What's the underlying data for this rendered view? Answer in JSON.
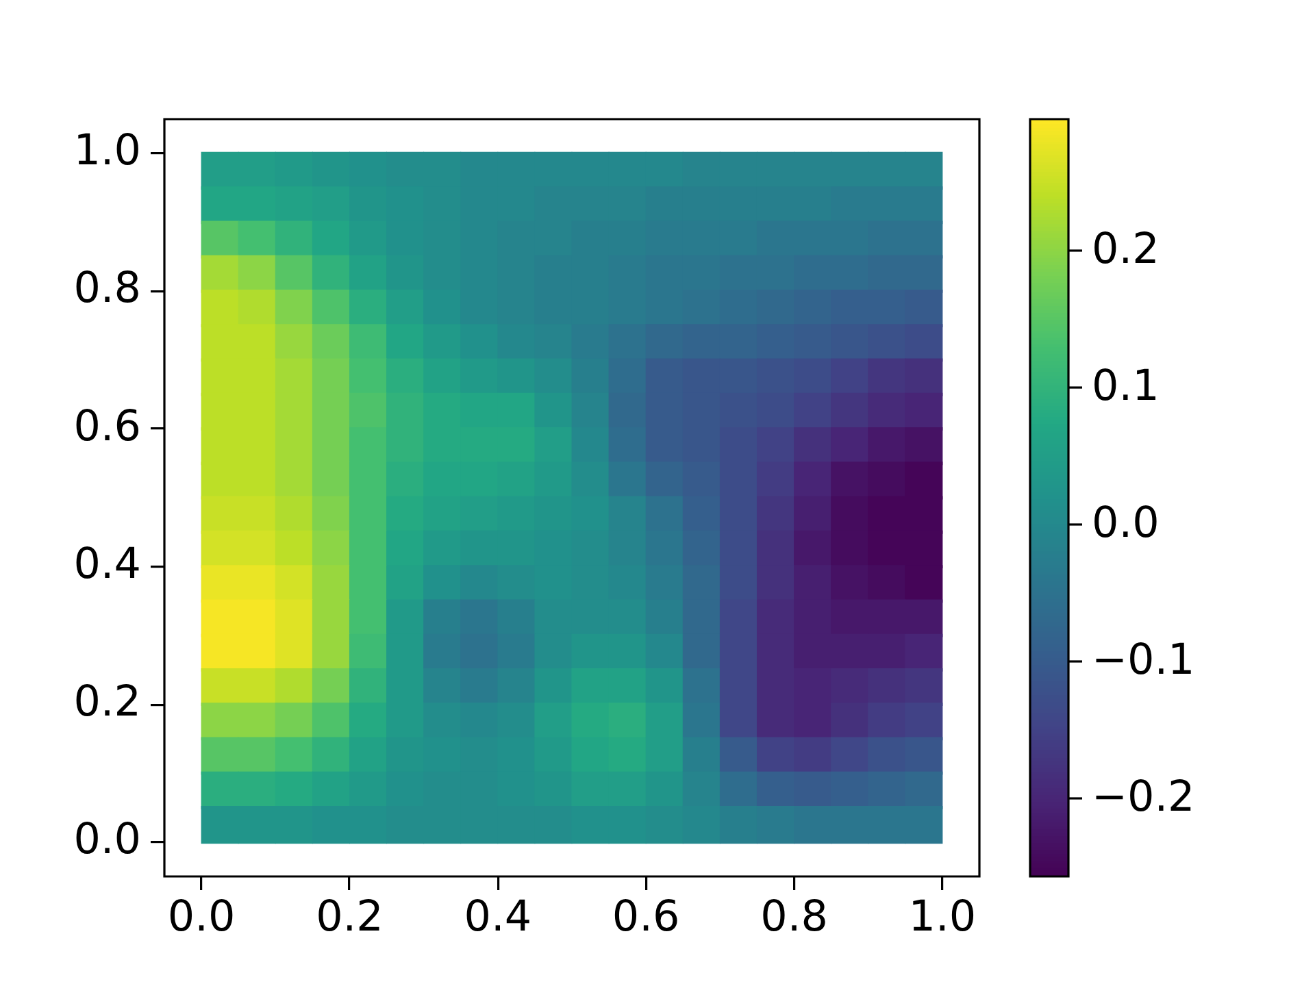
{
  "chart_data": {
    "type": "scatter",
    "marker": "square",
    "xlim": [
      -0.05,
      1.05
    ],
    "ylim": [
      -0.05,
      1.05
    ],
    "xticks": [
      {
        "value": 0,
        "label": "0.0"
      },
      0.2,
      0.4,
      0.6,
      0.8,
      {
        "value": 1,
        "label": "1.0"
      }
    ],
    "yticks": [
      {
        "value": 0,
        "label": "0.0"
      },
      0.2,
      0.4,
      0.6,
      0.8,
      {
        "value": 1,
        "label": "1.0"
      }
    ],
    "clim": [
      -0.257,
      0.296
    ],
    "cticks": [
      {
        "value": -0.2,
        "label": "−0.2"
      },
      {
        "value": -0.1,
        "label": "−0.1"
      },
      {
        "value": 0,
        "label": "0.0"
      },
      0.1,
      0.2
    ],
    "x": [
      0.025,
      0.075,
      0.125,
      0.175,
      0.225,
      0.275,
      0.325,
      0.375,
      0.425,
      0.475,
      0.525,
      0.575,
      0.625,
      0.675,
      0.725,
      0.775,
      0.825,
      0.875,
      0.925,
      0.975,
      0.025,
      0.075,
      0.125,
      0.175,
      0.225,
      0.275,
      0.325,
      0.375,
      0.425,
      0.475,
      0.525,
      0.575,
      0.625,
      0.675,
      0.725,
      0.775,
      0.825,
      0.875,
      0.925,
      0.975,
      0.025,
      0.075,
      0.125,
      0.175,
      0.225,
      0.275,
      0.325,
      0.375,
      0.425,
      0.475,
      0.525,
      0.575,
      0.625,
      0.675,
      0.725,
      0.775,
      0.825,
      0.875,
      0.925,
      0.975,
      0.025,
      0.075,
      0.125,
      0.175,
      0.225,
      0.275,
      0.325,
      0.375,
      0.425,
      0.475,
      0.525,
      0.575,
      0.625,
      0.675,
      0.725,
      0.775,
      0.825,
      0.875,
      0.925,
      0.975,
      0.025,
      0.075,
      0.125,
      0.175,
      0.225,
      0.275,
      0.325,
      0.375,
      0.425,
      0.475,
      0.525,
      0.575,
      0.625,
      0.675,
      0.725,
      0.775,
      0.825,
      0.875,
      0.925,
      0.975,
      0.025,
      0.075,
      0.125,
      0.175,
      0.225,
      0.275,
      0.325,
      0.375,
      0.425,
      0.475,
      0.525,
      0.575,
      0.625,
      0.675,
      0.725,
      0.775,
      0.825,
      0.875,
      0.925,
      0.975,
      0.025,
      0.075,
      0.125,
      0.175,
      0.225,
      0.275,
      0.325,
      0.375,
      0.425,
      0.475,
      0.525,
      0.575,
      0.625,
      0.675,
      0.725,
      0.775,
      0.825,
      0.875,
      0.925,
      0.975,
      0.025,
      0.075,
      0.125,
      0.175,
      0.225,
      0.275,
      0.325,
      0.375,
      0.425,
      0.475,
      0.525,
      0.575,
      0.625,
      0.675,
      0.725,
      0.775,
      0.825,
      0.875,
      0.925,
      0.975,
      0.025,
      0.075,
      0.125,
      0.175,
      0.225,
      0.275,
      0.325,
      0.375,
      0.425,
      0.475,
      0.525,
      0.575,
      0.625,
      0.675,
      0.725,
      0.775,
      0.825,
      0.875,
      0.925,
      0.975,
      0.025,
      0.075,
      0.125,
      0.175,
      0.225,
      0.275,
      0.325,
      0.375,
      0.425,
      0.475,
      0.525,
      0.575,
      0.625,
      0.675,
      0.725,
      0.775,
      0.825,
      0.875,
      0.925,
      0.975,
      0.025,
      0.075,
      0.125,
      0.175,
      0.225,
      0.275,
      0.325,
      0.375,
      0.425,
      0.475,
      0.525,
      0.575,
      0.625,
      0.675,
      0.725,
      0.775,
      0.825,
      0.875,
      0.925,
      0.975,
      0.025,
      0.075,
      0.125,
      0.175,
      0.225,
      0.275,
      0.325,
      0.375,
      0.425,
      0.475,
      0.525,
      0.575,
      0.625,
      0.675,
      0.725,
      0.775,
      0.825,
      0.875,
      0.925,
      0.975,
      0.025,
      0.075,
      0.125,
      0.175,
      0.225,
      0.275,
      0.325,
      0.375,
      0.425,
      0.475,
      0.525,
      0.575,
      0.625,
      0.675,
      0.725,
      0.775,
      0.825,
      0.875,
      0.925,
      0.975,
      0.025,
      0.075,
      0.125,
      0.175,
      0.225,
      0.275,
      0.325,
      0.375,
      0.425,
      0.475,
      0.525,
      0.575,
      0.625,
      0.675,
      0.725,
      0.775,
      0.825,
      0.875,
      0.925,
      0.975,
      0.025,
      0.075,
      0.125,
      0.175,
      0.225,
      0.275,
      0.325,
      0.375,
      0.425,
      0.475,
      0.525,
      0.575,
      0.625,
      0.675,
      0.725,
      0.775,
      0.825,
      0.875,
      0.925,
      0.975,
      0.025,
      0.075,
      0.125,
      0.175,
      0.225,
      0.275,
      0.325,
      0.375,
      0.425,
      0.475,
      0.525,
      0.575,
      0.625,
      0.675,
      0.725,
      0.775,
      0.825,
      0.875,
      0.925,
      0.975,
      0.025,
      0.075,
      0.125,
      0.175,
      0.225,
      0.275,
      0.325,
      0.375,
      0.425,
      0.475,
      0.525,
      0.575,
      0.625,
      0.675,
      0.725,
      0.775,
      0.825,
      0.875,
      0.925,
      0.975,
      0.025,
      0.075,
      0.125,
      0.175,
      0.225,
      0.275,
      0.325,
      0.375,
      0.425,
      0.475,
      0.525,
      0.575,
      0.625,
      0.675,
      0.725,
      0.775,
      0.825,
      0.875,
      0.925,
      0.975,
      0.025,
      0.075,
      0.125,
      0.175,
      0.225,
      0.275,
      0.325,
      0.375,
      0.425,
      0.475,
      0.525,
      0.575,
      0.625,
      0.675,
      0.725,
      0.775,
      0.825,
      0.875,
      0.925,
      0.975,
      0.025,
      0.075,
      0.125,
      0.175,
      0.225,
      0.275,
      0.325,
      0.375,
      0.425,
      0.475,
      0.525,
      0.575,
      0.625,
      0.675,
      0.725,
      0.775,
      0.825,
      0.875,
      0.925,
      0.975
    ],
    "values": [
      0.975,
      0.975,
      0.975,
      0.975,
      0.975,
      0.975,
      0.975,
      0.975,
      0.975,
      0.975,
      0.975,
      0.975,
      0.975,
      0.975,
      0.975,
      0.975,
      0.975,
      0.975,
      0.975,
      0.975,
      0.925,
      0.925,
      0.925,
      0.925,
      0.925,
      0.925,
      0.925,
      0.925,
      0.925,
      0.925,
      0.925,
      0.925,
      0.925,
      0.925,
      0.925,
      0.925,
      0.925,
      0.925,
      0.925,
      0.925,
      0.875,
      0.875,
      0.875,
      0.875,
      0.875,
      0.875,
      0.875,
      0.875,
      0.875,
      0.875,
      0.875,
      0.875,
      0.875,
      0.875,
      0.875,
      0.875,
      0.875,
      0.875,
      0.875,
      0.875,
      0.825,
      0.825,
      0.825,
      0.825,
      0.825,
      0.825,
      0.825,
      0.825,
      0.825,
      0.825,
      0.825,
      0.825,
      0.825,
      0.825,
      0.825,
      0.825,
      0.825,
      0.825,
      0.825,
      0.825,
      0.775,
      0.775,
      0.775,
      0.775,
      0.775,
      0.775,
      0.775,
      0.775,
      0.775,
      0.775,
      0.775,
      0.775,
      0.775,
      0.775,
      0.775,
      0.775,
      0.775,
      0.775,
      0.775,
      0.775,
      0.725,
      0.725,
      0.725,
      0.725,
      0.725,
      0.725,
      0.725,
      0.725,
      0.725,
      0.725,
      0.725,
      0.725,
      0.725,
      0.725,
      0.725,
      0.725,
      0.725,
      0.725,
      0.725,
      0.725,
      0.675,
      0.675,
      0.675,
      0.675,
      0.675,
      0.675,
      0.675,
      0.675,
      0.675,
      0.675,
      0.675,
      0.675,
      0.675,
      0.675,
      0.675,
      0.675,
      0.675,
      0.675,
      0.675,
      0.675,
      0.625,
      0.625,
      0.625,
      0.625,
      0.625,
      0.625,
      0.625,
      0.625,
      0.625,
      0.625,
      0.625,
      0.625,
      0.625,
      0.625,
      0.625,
      0.625,
      0.625,
      0.625,
      0.625,
      0.625,
      0.575,
      0.575,
      0.575,
      0.575,
      0.575,
      0.575,
      0.575,
      0.575,
      0.575,
      0.575,
      0.575,
      0.575,
      0.575,
      0.575,
      0.575,
      0.575,
      0.575,
      0.575,
      0.575,
      0.575,
      0.525,
      0.525,
      0.525,
      0.525,
      0.525,
      0.525,
      0.525,
      0.525,
      0.525,
      0.525,
      0.525,
      0.525,
      0.525,
      0.525,
      0.525,
      0.525,
      0.525,
      0.525,
      0.525,
      0.525,
      0.475,
      0.475,
      0.475,
      0.475,
      0.475,
      0.475,
      0.475,
      0.475,
      0.475,
      0.475,
      0.475,
      0.475,
      0.475,
      0.475,
      0.475,
      0.475,
      0.475,
      0.475,
      0.475,
      0.475,
      0.425,
      0.425,
      0.425,
      0.425,
      0.425,
      0.425,
      0.425,
      0.425,
      0.425,
      0.425,
      0.425,
      0.425,
      0.425,
      0.425,
      0.425,
      0.425,
      0.425,
      0.425,
      0.425,
      0.425,
      0.375,
      0.375,
      0.375,
      0.375,
      0.375,
      0.375,
      0.375,
      0.375,
      0.375,
      0.375,
      0.375,
      0.375,
      0.375,
      0.375,
      0.375,
      0.375,
      0.375,
      0.375,
      0.375,
      0.375,
      0.325,
      0.325,
      0.325,
      0.325,
      0.325,
      0.325,
      0.325,
      0.325,
      0.325,
      0.325,
      0.325,
      0.325,
      0.325,
      0.325,
      0.325,
      0.325,
      0.325,
      0.325,
      0.325,
      0.325,
      0.275,
      0.275,
      0.275,
      0.275,
      0.275,
      0.275,
      0.275,
      0.275,
      0.275,
      0.275,
      0.275,
      0.275,
      0.275,
      0.275,
      0.275,
      0.275,
      0.275,
      0.275,
      0.275,
      0.275,
      0.225,
      0.225,
      0.225,
      0.225,
      0.225,
      0.225,
      0.225,
      0.225,
      0.225,
      0.225,
      0.225,
      0.225,
      0.225,
      0.225,
      0.225,
      0.225,
      0.225,
      0.225,
      0.225,
      0.225,
      0.175,
      0.175,
      0.175,
      0.175,
      0.175,
      0.175,
      0.175,
      0.175,
      0.175,
      0.175,
      0.175,
      0.175,
      0.175,
      0.175,
      0.175,
      0.175,
      0.175,
      0.175,
      0.175,
      0.175,
      0.125,
      0.125,
      0.125,
      0.125,
      0.125,
      0.125,
      0.125,
      0.125,
      0.125,
      0.125,
      0.125,
      0.125,
      0.125,
      0.125,
      0.125,
      0.125,
      0.125,
      0.125,
      0.125,
      0.125,
      0.075,
      0.075,
      0.075,
      0.075,
      0.075,
      0.075,
      0.075,
      0.075,
      0.075,
      0.075,
      0.075,
      0.075,
      0.075,
      0.075,
      0.075,
      0.075,
      0.075,
      0.075,
      0.075,
      0.075,
      0.025,
      0.025,
      0.025,
      0.025,
      0.025,
      0.025,
      0.025,
      0.025,
      0.025,
      0.025,
      0.025,
      0.025,
      0.025,
      0.025,
      0.025,
      0.025,
      0.025,
      0.025,
      0.025,
      0.025
    ],
    "cvalues": [
      0.05,
      0.05,
      0.04,
      0.03,
      0.02,
      0.01,
      0.01,
      0.0,
      0.0,
      0.0,
      0.0,
      0.0,
      0.0,
      -0.01,
      -0.01,
      -0.01,
      -0.01,
      -0.01,
      -0.01,
      -0.01,
      0.07,
      0.07,
      0.06,
      0.05,
      0.03,
      0.02,
      0.01,
      0.0,
      0.0,
      -0.01,
      -0.01,
      -0.01,
      -0.02,
      -0.02,
      -0.02,
      -0.02,
      -0.02,
      -0.03,
      -0.03,
      -0.03,
      0.15,
      0.13,
      0.1,
      0.07,
      0.04,
      0.02,
      0.01,
      0.0,
      -0.01,
      -0.01,
      -0.02,
      -0.02,
      -0.03,
      -0.03,
      -0.03,
      -0.04,
      -0.04,
      -0.04,
      -0.05,
      -0.05,
      0.22,
      0.2,
      0.15,
      0.1,
      0.06,
      0.03,
      0.01,
      0.0,
      -0.01,
      -0.02,
      -0.02,
      -0.03,
      -0.04,
      -0.04,
      -0.05,
      -0.05,
      -0.06,
      -0.06,
      -0.07,
      -0.07,
      0.24,
      0.23,
      0.19,
      0.14,
      0.09,
      0.05,
      0.02,
      0.0,
      -0.01,
      -0.02,
      -0.02,
      -0.03,
      -0.04,
      -0.05,
      -0.06,
      -0.07,
      -0.08,
      -0.09,
      -0.09,
      -0.1,
      0.24,
      0.24,
      0.21,
      0.17,
      0.12,
      0.07,
      0.04,
      0.02,
      0.0,
      -0.01,
      -0.03,
      -0.05,
      -0.07,
      -0.08,
      -0.08,
      -0.09,
      -0.1,
      -0.11,
      -0.12,
      -0.13,
      0.24,
      0.24,
      0.22,
      0.18,
      0.13,
      0.09,
      0.06,
      0.04,
      0.03,
      0.01,
      -0.02,
      -0.06,
      -0.1,
      -0.11,
      -0.11,
      -0.12,
      -0.13,
      -0.15,
      -0.17,
      -0.18,
      0.24,
      0.24,
      0.22,
      0.18,
      0.14,
      0.1,
      0.08,
      0.07,
      0.07,
      0.03,
      -0.01,
      -0.07,
      -0.1,
      -0.11,
      -0.12,
      -0.13,
      -0.15,
      -0.17,
      -0.19,
      -0.2,
      0.24,
      0.24,
      0.22,
      0.18,
      0.13,
      0.1,
      0.08,
      0.08,
      0.08,
      0.05,
      0.0,
      -0.06,
      -0.1,
      -0.11,
      -0.13,
      -0.15,
      -0.18,
      -0.2,
      -0.22,
      -0.23,
      0.24,
      0.24,
      0.22,
      0.18,
      0.13,
      0.09,
      0.07,
      0.07,
      0.06,
      0.04,
      0.01,
      -0.04,
      -0.08,
      -0.1,
      -0.13,
      -0.16,
      -0.2,
      -0.23,
      -0.24,
      -0.25,
      0.25,
      0.25,
      0.23,
      0.19,
      0.13,
      0.08,
      0.06,
      0.05,
      0.04,
      0.03,
      0.02,
      -0.01,
      -0.05,
      -0.09,
      -0.13,
      -0.17,
      -0.21,
      -0.24,
      -0.25,
      -0.25,
      0.26,
      0.26,
      0.24,
      0.2,
      0.13,
      0.07,
      0.04,
      0.03,
      0.03,
      0.02,
      0.01,
      -0.01,
      -0.04,
      -0.08,
      -0.13,
      -0.18,
      -0.22,
      -0.24,
      -0.25,
      -0.25,
      0.28,
      0.28,
      0.26,
      0.21,
      0.13,
      0.06,
      0.02,
      0.0,
      0.01,
      0.02,
      0.01,
      0.0,
      -0.03,
      -0.07,
      -0.13,
      -0.18,
      -0.21,
      -0.23,
      -0.24,
      -0.25,
      0.29,
      0.29,
      0.27,
      0.21,
      0.13,
      0.04,
      -0.02,
      -0.04,
      -0.02,
      0.01,
      0.01,
      0.01,
      -0.02,
      -0.07,
      -0.14,
      -0.19,
      -0.21,
      -0.22,
      -0.22,
      -0.22,
      0.29,
      0.29,
      0.27,
      0.21,
      0.12,
      0.04,
      -0.03,
      -0.05,
      -0.03,
      0.01,
      0.03,
      0.03,
      0.0,
      -0.07,
      -0.14,
      -0.19,
      -0.21,
      -0.21,
      -0.21,
      -0.2,
      0.25,
      0.25,
      0.23,
      0.18,
      0.1,
      0.04,
      -0.01,
      -0.03,
      -0.01,
      0.03,
      0.06,
      0.06,
      0.03,
      -0.05,
      -0.14,
      -0.19,
      -0.2,
      -0.19,
      -0.18,
      -0.17,
      0.2,
      0.2,
      0.18,
      0.14,
      0.08,
      0.04,
      0.01,
      0.0,
      0.01,
      0.05,
      0.08,
      0.09,
      0.05,
      -0.04,
      -0.14,
      -0.19,
      -0.2,
      -0.18,
      -0.16,
      -0.15,
      0.15,
      0.15,
      0.13,
      0.1,
      0.06,
      0.03,
      0.02,
      0.01,
      0.02,
      0.04,
      0.07,
      0.08,
      0.05,
      -0.02,
      -0.1,
      -0.15,
      -0.16,
      -0.14,
      -0.12,
      -0.11,
      0.09,
      0.09,
      0.08,
      0.06,
      0.04,
      0.02,
      0.01,
      0.01,
      0.02,
      0.03,
      0.05,
      0.05,
      0.03,
      -0.01,
      -0.06,
      -0.09,
      -0.1,
      -0.09,
      -0.08,
      -0.07,
      0.03,
      0.03,
      0.03,
      0.02,
      0.02,
      0.01,
      0.01,
      0.01,
      0.01,
      0.01,
      0.02,
      0.02,
      0.01,
      0.0,
      -0.02,
      -0.03,
      -0.04,
      -0.04,
      -0.04,
      -0.04
    ]
  }
}
